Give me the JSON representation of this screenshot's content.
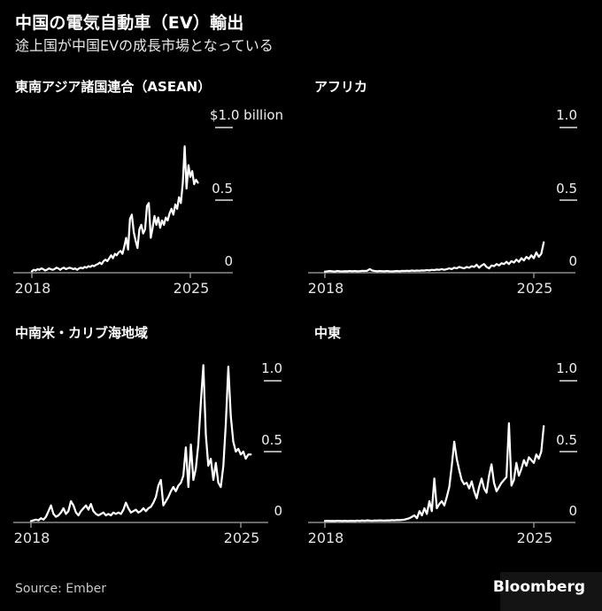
{
  "header": {
    "title": "中国の電気自動車（EV）輸出",
    "subtitle": "途上国が中国EVの成長市場となっている"
  },
  "footer": {
    "source": "Source:  Ember",
    "brand": "Bloomberg"
  },
  "colors": {
    "background": "#000000",
    "line": "#ffffff",
    "axis": "#8c8c8c",
    "tick": "#a8a8a8",
    "label": "#f0f0f0"
  },
  "chart_data": [
    {
      "type": "line",
      "title": "東南アジア諸国連合（ASEAN）",
      "y_tick_labels": [
        "$1.0  billion",
        "0.5",
        "0"
      ],
      "x_tick_labels": [
        "2018",
        "2025"
      ],
      "x_start": "2018-01",
      "x_freq": "monthly",
      "ylim": [
        0,
        1.0
      ],
      "unit": "USD billion",
      "values": [
        0.01,
        0.02,
        0.015,
        0.025,
        0.02,
        0.03,
        0.025,
        0.015,
        0.02,
        0.03,
        0.025,
        0.02,
        0.025,
        0.035,
        0.03,
        0.02,
        0.03,
        0.035,
        0.025,
        0.03,
        0.035,
        0.03,
        0.025,
        0.03,
        0.02,
        0.03,
        0.035,
        0.03,
        0.04,
        0.035,
        0.045,
        0.04,
        0.05,
        0.045,
        0.055,
        0.06,
        0.07,
        0.06,
        0.08,
        0.09,
        0.08,
        0.1,
        0.12,
        0.1,
        0.13,
        0.12,
        0.14,
        0.15,
        0.13,
        0.18,
        0.24,
        0.16,
        0.37,
        0.4,
        0.28,
        0.22,
        0.17,
        0.3,
        0.33,
        0.27,
        0.3,
        0.46,
        0.48,
        0.24,
        0.31,
        0.39,
        0.33,
        0.38,
        0.31,
        0.36,
        0.33,
        0.38,
        0.36,
        0.41,
        0.44,
        0.4,
        0.47,
        0.44,
        0.52,
        0.48,
        0.62,
        0.87,
        0.58,
        0.74,
        0.66,
        0.7,
        0.61,
        0.64,
        0.62
      ]
    },
    {
      "type": "line",
      "title": "アフリカ",
      "y_tick_labels": [
        "1.0",
        "0.5",
        "0"
      ],
      "x_tick_labels": [
        "2018",
        "2025"
      ],
      "x_start": "2018-01",
      "x_freq": "monthly",
      "ylim": [
        0,
        1.0
      ],
      "unit": "USD billion",
      "values": [
        0.008,
        0.01,
        0.012,
        0.01,
        0.008,
        0.012,
        0.01,
        0.009,
        0.011,
        0.01,
        0.012,
        0.01,
        0.012,
        0.01,
        0.011,
        0.013,
        0.012,
        0.014,
        0.025,
        0.015,
        0.012,
        0.01,
        0.012,
        0.011,
        0.01,
        0.012,
        0.01,
        0.009,
        0.011,
        0.012,
        0.01,
        0.013,
        0.012,
        0.014,
        0.012,
        0.015,
        0.013,
        0.015,
        0.014,
        0.016,
        0.015,
        0.018,
        0.016,
        0.02,
        0.018,
        0.022,
        0.02,
        0.025,
        0.02,
        0.025,
        0.03,
        0.025,
        0.035,
        0.03,
        0.04,
        0.035,
        0.03,
        0.04,
        0.035,
        0.045,
        0.04,
        0.055,
        0.035,
        0.05,
        0.06,
        0.04,
        0.03,
        0.05,
        0.045,
        0.06,
        0.05,
        0.065,
        0.06,
        0.075,
        0.06,
        0.08,
        0.07,
        0.09,
        0.075,
        0.1,
        0.085,
        0.11,
        0.095,
        0.12,
        0.1,
        0.14,
        0.11,
        0.13,
        0.21
      ]
    },
    {
      "type": "line",
      "title": "中南米・カリブ海地域",
      "y_tick_labels": [
        "1.0",
        "0.5",
        "0"
      ],
      "x_tick_labels": [
        "2018",
        "2025"
      ],
      "x_start": "2018-01",
      "x_freq": "monthly",
      "ylim": [
        0,
        1.0
      ],
      "unit": "USD billion",
      "values": [
        0.01,
        0.015,
        0.02,
        0.015,
        0.03,
        0.02,
        0.04,
        0.08,
        0.12,
        0.06,
        0.04,
        0.05,
        0.07,
        0.1,
        0.06,
        0.08,
        0.15,
        0.12,
        0.07,
        0.05,
        0.08,
        0.1,
        0.12,
        0.09,
        0.13,
        0.08,
        0.06,
        0.05,
        0.06,
        0.07,
        0.05,
        0.06,
        0.05,
        0.07,
        0.06,
        0.07,
        0.06,
        0.09,
        0.14,
        0.1,
        0.07,
        0.08,
        0.09,
        0.07,
        0.08,
        0.1,
        0.08,
        0.1,
        0.11,
        0.14,
        0.18,
        0.26,
        0.3,
        0.12,
        0.15,
        0.18,
        0.22,
        0.25,
        0.22,
        0.26,
        0.28,
        0.33,
        0.53,
        0.25,
        0.55,
        0.3,
        0.38,
        0.55,
        0.85,
        1.11,
        0.62,
        0.4,
        0.45,
        0.3,
        0.42,
        0.28,
        0.25,
        0.4,
        0.7,
        1.1,
        0.75,
        0.57,
        0.5,
        0.52,
        0.48,
        0.5,
        0.45,
        0.48,
        0.48
      ]
    },
    {
      "type": "line",
      "title": "中東",
      "y_tick_labels": [
        "1.0",
        "0.5",
        "0"
      ],
      "x_tick_labels": [
        "2018",
        "2025"
      ],
      "x_start": "2018-01",
      "x_freq": "monthly",
      "ylim": [
        0,
        1.0
      ],
      "unit": "USD billion",
      "values": [
        0.01,
        0.012,
        0.01,
        0.011,
        0.01,
        0.012,
        0.011,
        0.01,
        0.012,
        0.01,
        0.011,
        0.012,
        0.01,
        0.013,
        0.011,
        0.014,
        0.012,
        0.015,
        0.013,
        0.012,
        0.014,
        0.013,
        0.015,
        0.014,
        0.013,
        0.015,
        0.014,
        0.016,
        0.015,
        0.017,
        0.016,
        0.018,
        0.02,
        0.025,
        0.03,
        0.04,
        0.05,
        0.03,
        0.08,
        0.05,
        0.1,
        0.06,
        0.15,
        0.08,
        0.31,
        0.1,
        0.13,
        0.15,
        0.12,
        0.18,
        0.25,
        0.4,
        0.57,
        0.45,
        0.37,
        0.3,
        0.27,
        0.28,
        0.24,
        0.29,
        0.22,
        0.17,
        0.25,
        0.31,
        0.24,
        0.21,
        0.33,
        0.41,
        0.28,
        0.22,
        0.25,
        0.28,
        0.3,
        0.32,
        0.7,
        0.26,
        0.3,
        0.42,
        0.33,
        0.38,
        0.44,
        0.4,
        0.46,
        0.44,
        0.42,
        0.48,
        0.45,
        0.5,
        0.68
      ]
    }
  ]
}
